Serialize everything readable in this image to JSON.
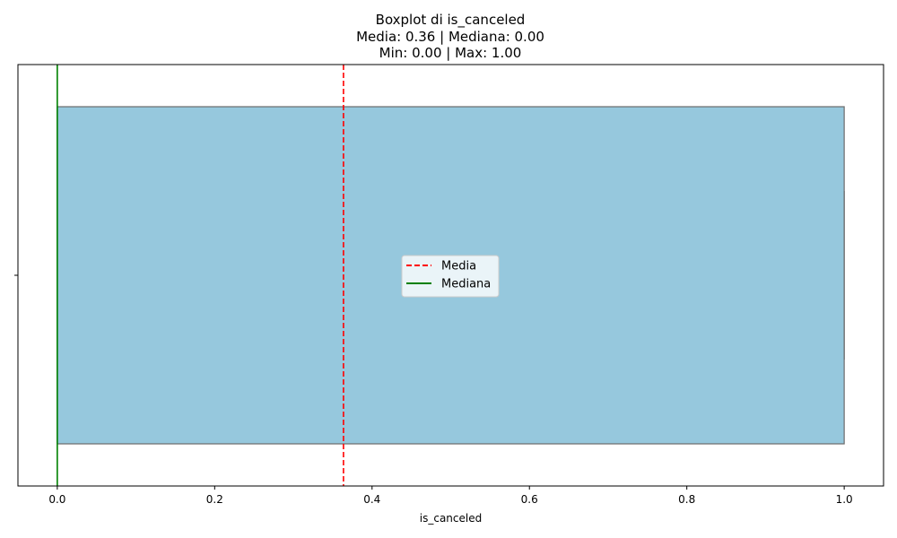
{
  "chart_data": {
    "type": "boxplot",
    "title_lines": [
      "Boxplot di is_canceled",
      "Media: 0.36 | Mediana: 0.00",
      "Min: 0.00 | Max: 1.00"
    ],
    "xlabel": "is_canceled",
    "ylabel": "",
    "xlim": [
      -0.05,
      1.05
    ],
    "x_ticks": [
      0.0,
      0.2,
      0.4,
      0.6,
      0.8,
      1.0
    ],
    "x_tick_labels": [
      "0.0",
      "0.2",
      "0.4",
      "0.6",
      "0.8",
      "1.0"
    ],
    "box": {
      "min": 0.0,
      "q1": 0.0,
      "median": 0.0,
      "q3": 1.0,
      "max": 1.0,
      "fill_color": "#96c8dd",
      "edge_color": "#6b6b6b"
    },
    "mean": 0.3637,
    "mean_line": {
      "color": "#ff0000",
      "style": "dashed"
    },
    "median_line": {
      "color": "#008000",
      "style": "solid"
    },
    "legend": {
      "placement": "center",
      "entries": [
        {
          "label": "Media",
          "color": "#ff0000",
          "style": "dashed"
        },
        {
          "label": "Mediana",
          "color": "#008000",
          "style": "solid"
        }
      ]
    },
    "grid": false
  }
}
